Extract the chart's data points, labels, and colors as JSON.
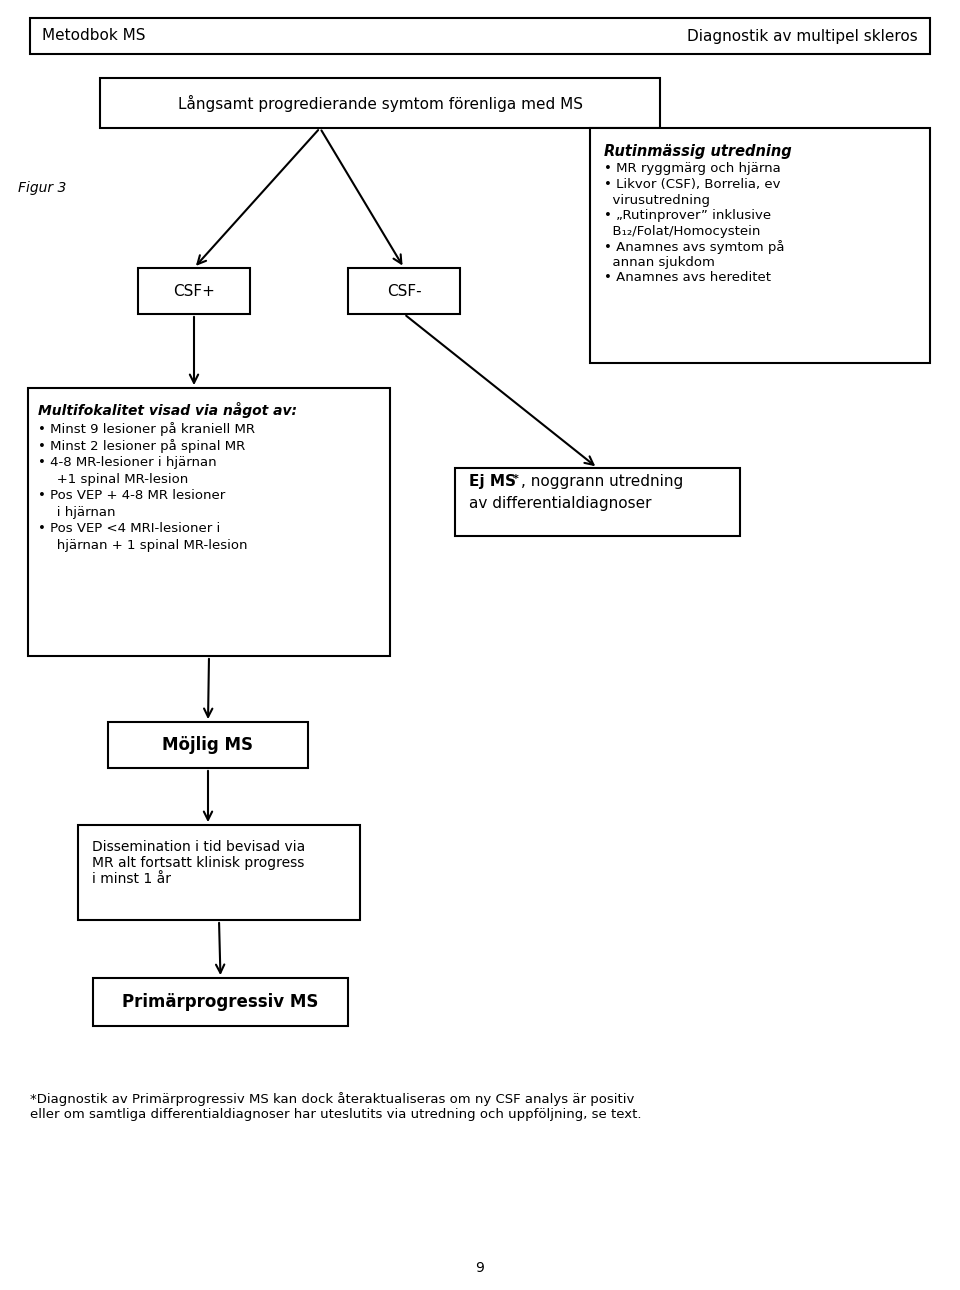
{
  "bg_color": "#ffffff",
  "fig_width": 9.6,
  "fig_height": 12.9,
  "header_left": "Metodbok MS",
  "header_right": "Diagnostik av multipel skleros",
  "figur_label": "Figur 3",
  "top_box_text": "Långsamt progredierande symtom förenliga med MS",
  "csf_plus": "CSF+",
  "csf_minus": "CSF-",
  "rutinbox_title": "Rutinmässig utredning",
  "rutinbox_items": [
    "MR ryggmärg och hjärna",
    "Likvor (CSF), Borrelia, ev\n  virusutredning",
    "„Rutinprover” inklusive\n  B₁₂/Folat/Homocystein",
    "Anamnes avs symtom på\n  annan sjukdom",
    "Anamnes avs hereditet"
  ],
  "multi_box_title": "Multifokalitet visad via något av:",
  "multi_box_items": [
    "Minst 9 lesioner på kraniell MR",
    "Minst 2 lesioner på spinal MR",
    "4-8 MR-lesioner i hjärnan\n   +1 spinal MR-lesion",
    "Pos VEP + 4-8 MR lesioner\n   i hjärnan",
    "Pos VEP <4 MRI-lesioner i\n   hjärnan + 1 spinal MR-lesion"
  ],
  "ej_ms_line1": "Ej MS",
  "ej_ms_sup": "*",
  "ej_ms_line1b": ", noggrann utredning",
  "ej_ms_line2": "av differentialdiagnoser",
  "mojlig_ms_text": "Möjlig MS",
  "dissem_text": "Dissemination i tid bevisad via\nMR alt fortsatt klinisk progress\ni minst 1 år",
  "prim_ms_text": "Primärprogressiv MS",
  "footnote": "*Diagnostik av Primärprogressiv MS kan dock återaktualiseras om ny CSF analys är positiv\neller om samtliga differentialdiagnoser har uteslutits via utredning och uppföljning, se text.",
  "page_num": "9"
}
